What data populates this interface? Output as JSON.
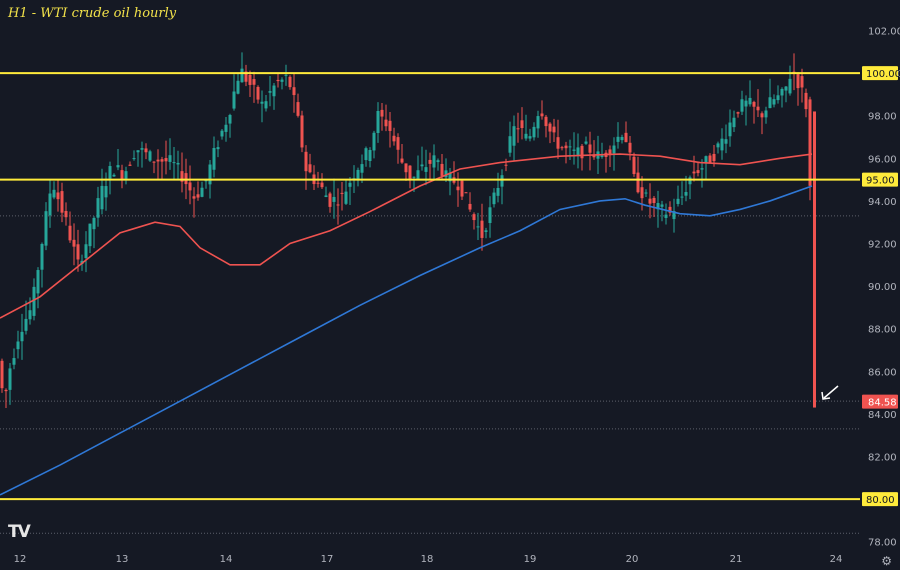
{
  "chart_data": {
    "type": "candlestick",
    "title": "H1 - WTI crude oil hourly",
    "x_ticks": [
      "12",
      "13",
      "14",
      "17",
      "18",
      "19",
      "20",
      "21",
      "24"
    ],
    "y_ticks": [
      "78.00",
      "80.00",
      "82.00",
      "84.00",
      "86.00",
      "88.00",
      "90.00",
      "92.00",
      "94.00",
      "96.00",
      "98.00",
      "100.00",
      "102.00"
    ],
    "ylim": [
      77.8,
      102.4
    ],
    "grid": false,
    "last_price": "84.58",
    "levels": [
      {
        "label": "100.00",
        "value": 100.0
      },
      {
        "label": "95.00",
        "value": 95.0
      },
      {
        "label": "80.00",
        "value": 80.0
      }
    ],
    "dotted_levels": [
      93.3,
      84.6,
      83.3,
      78.4
    ],
    "series": [
      {
        "type": "line",
        "color": "#ef5350",
        "points": [
          [
            0,
            88.5
          ],
          [
            40,
            89.5
          ],
          [
            80,
            91.0
          ],
          [
            120,
            92.5
          ],
          [
            155,
            93.0
          ],
          [
            180,
            92.8
          ],
          [
            200,
            91.8
          ],
          [
            230,
            91.0
          ],
          [
            260,
            91.0
          ],
          [
            290,
            92.0
          ],
          [
            330,
            92.6
          ],
          [
            370,
            93.5
          ],
          [
            420,
            94.7
          ],
          [
            460,
            95.5
          ],
          [
            500,
            95.8
          ],
          [
            560,
            96.1
          ],
          [
            620,
            96.2
          ],
          [
            660,
            96.1
          ],
          [
            700,
            95.8
          ],
          [
            740,
            95.7
          ],
          [
            780,
            96.0
          ],
          [
            812,
            96.2
          ]
        ]
      },
      {
        "type": "line",
        "color": "#2f78d6",
        "points": [
          [
            0,
            80.2
          ],
          [
            60,
            81.6
          ],
          [
            120,
            83.1
          ],
          [
            180,
            84.6
          ],
          [
            240,
            86.1
          ],
          [
            300,
            87.6
          ],
          [
            360,
            89.1
          ],
          [
            420,
            90.5
          ],
          [
            480,
            91.8
          ],
          [
            520,
            92.6
          ],
          [
            560,
            93.6
          ],
          [
            600,
            94.0
          ],
          [
            625,
            94.1
          ],
          [
            645,
            93.8
          ],
          [
            680,
            93.4
          ],
          [
            710,
            93.3
          ],
          [
            740,
            93.6
          ],
          [
            770,
            94.0
          ],
          [
            812,
            94.7
          ]
        ]
      }
    ],
    "candle_colors": {
      "up": "#26a69a",
      "down": "#ef5350"
    }
  }
}
